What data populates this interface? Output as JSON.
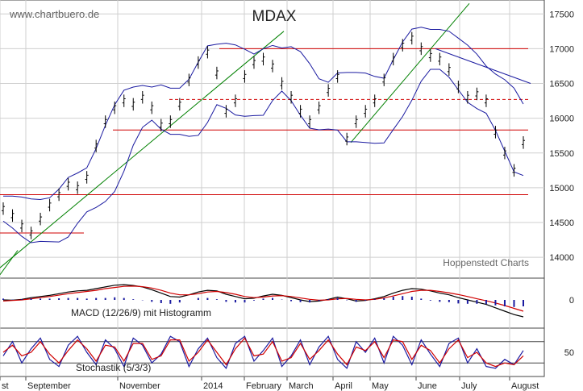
{
  "chart_data": [
    {
      "type": "line",
      "title": "MDAX",
      "watermark": "www.chartbuero.de",
      "credit": "Hoppenstedt Charts",
      "x_tick_labels": [
        "st",
        "September",
        "November",
        "2014",
        "February",
        "March",
        "April",
        "May",
        "June",
        "July",
        "August"
      ],
      "y_tick_labels": [
        "14000",
        "14500",
        "15000",
        "15500",
        "16000",
        "16500",
        "17000",
        "17500"
      ],
      "ylim": [
        13700,
        17700
      ],
      "grid": true,
      "colors": {
        "price": "#000000",
        "bollinger": "#1a1aa0",
        "support": "#d00000",
        "trend": "#008000",
        "downtrend": "#1a1aa0",
        "dashed": "#d00000"
      },
      "horizontal_levels": [
        {
          "value": 14900,
          "style": "solid"
        },
        {
          "value": 15830,
          "style": "solid"
        },
        {
          "value": 16270,
          "style": "dashed"
        },
        {
          "value": 17000,
          "style": "solid"
        },
        {
          "value": 14350,
          "style": "solid",
          "partial": true
        }
      ],
      "series": [
        {
          "values": [
            14700,
            14600,
            14450,
            14350,
            14550,
            14750,
            14900,
            15050,
            15000,
            15150,
            15600,
            15950,
            16150,
            16250,
            16200,
            16300,
            16150,
            15900,
            15950,
            16200,
            16550,
            16800,
            16950,
            16650,
            16100,
            16250,
            16600,
            16800,
            16850,
            16750,
            16500,
            16300,
            16100,
            15950,
            16150,
            16400,
            16600,
            15700,
            15950,
            16100,
            16250,
            16550,
            16850,
            17050,
            17150,
            17000,
            16900,
            16850,
            16700,
            16450,
            16300,
            16350,
            16250,
            15800,
            15500,
            15250,
            15650
          ]
        }
      ]
    },
    {
      "type": "line",
      "label": "MACD (12/26/9) mit Histogramm",
      "y_tick_labels": [
        "0"
      ],
      "series": [
        {
          "values": [
            0,
            -5,
            10,
            40,
            60,
            80,
            110,
            140,
            160,
            170,
            200,
            230,
            260,
            270,
            255,
            230,
            180,
            120,
            60,
            50,
            90,
            140,
            170,
            160,
            100,
            60,
            20,
            30,
            70,
            100,
            80,
            40,
            0,
            -30,
            -20,
            10,
            50,
            20,
            -20,
            -10,
            20,
            60,
            120,
            170,
            200,
            190,
            160,
            120,
            90,
            40,
            0,
            -40,
            -80,
            -140,
            -200,
            -260,
            -300
          ]
        },
        {
          "values": [
            -20,
            -10,
            0,
            20,
            40,
            60,
            85,
            110,
            130,
            150,
            170,
            200,
            220,
            240,
            245,
            235,
            210,
            170,
            120,
            90,
            90,
            110,
            140,
            150,
            130,
            100,
            60,
            40,
            50,
            70,
            75,
            60,
            35,
            10,
            -5,
            0,
            20,
            25,
            10,
            0,
            10,
            35,
            70,
            110,
            150,
            170,
            170,
            150,
            125,
            95,
            60,
            20,
            -15,
            -55,
            -100,
            -150,
            -200
          ]
        }
      ]
    },
    {
      "type": "line",
      "label": "Stochastik (5/3/3)",
      "y_tick_labels": [
        "50"
      ],
      "series": [
        {
          "values": [
            40,
            80,
            20,
            60,
            90,
            30,
            10,
            70,
            95,
            50,
            15,
            85,
            60,
            10,
            90,
            70,
            20,
            45,
            95,
            80,
            10,
            60,
            90,
            35,
            5,
            75,
            95,
            25,
            55,
            90,
            10,
            40,
            85,
            15,
            65,
            95,
            30,
            5,
            80,
            50,
            90,
            20,
            95,
            70,
            15,
            85,
            45,
            10,
            75,
            90,
            20,
            60,
            10,
            5,
            30,
            15,
            55
          ]
        },
        {
          "values": [
            50,
            70,
            40,
            50,
            80,
            45,
            20,
            55,
            85,
            60,
            25,
            70,
            65,
            25,
            75,
            75,
            30,
            40,
            85,
            85,
            25,
            50,
            85,
            50,
            15,
            60,
            90,
            40,
            45,
            80,
            25,
            35,
            75,
            30,
            55,
            85,
            45,
            15,
            65,
            55,
            80,
            35,
            85,
            80,
            30,
            70,
            55,
            20,
            60,
            85,
            35,
            50,
            20,
            10,
            20,
            15,
            40
          ]
        }
      ]
    }
  ]
}
